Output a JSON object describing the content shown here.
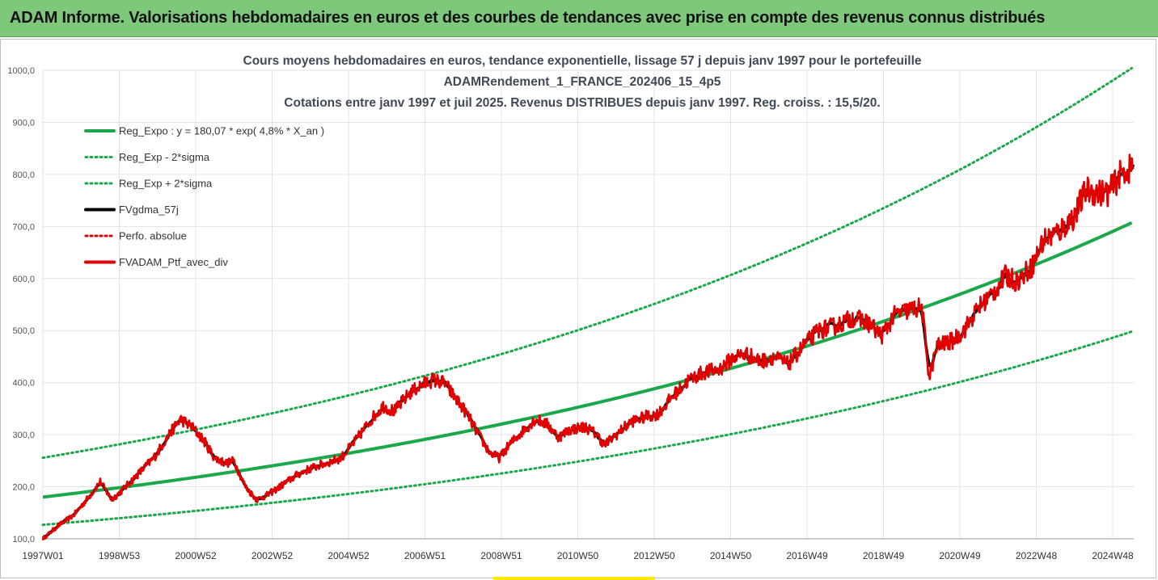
{
  "header": {
    "title": "ADAM Informe. Valorisations hebdomadaires en euros et des courbes de tendances avec prise en compte des revenus connus distribués"
  },
  "colors": {
    "banner": "#7dc87a",
    "reg_expo": "#1aa84a",
    "sigma": "#1aa84a",
    "fvgdma": "#000000",
    "perfo": "#e00000",
    "ptf": "#e00000",
    "grid": "#e3e3e3"
  },
  "chart_data": {
    "type": "line",
    "title_lines": [
      "Cours moyens hebdomadaires en euros, tendance exponentielle, lissage 57 j depuis janv 1997 pour le portefeuille",
      "ADAMRendement_1_FRANCE_202406_15_4p5",
      "Cotations entre janv 1997 et juil 2025. Revenus DISTRIBUES depuis janv 1997. Reg. croiss. : 15,5/20."
    ],
    "y_ticks": [
      "100,0",
      "200,0",
      "300,0",
      "400,0",
      "500,0",
      "600,0",
      "700,0",
      "800,0",
      "900,0",
      "1000,0"
    ],
    "ylim": [
      100,
      1000
    ],
    "x_range_years": [
      1997.0,
      2025.55
    ],
    "x_ticks": [
      {
        "label": "1997W01",
        "year": 1997.0
      },
      {
        "label": "1998W53",
        "year": 1999.0
      },
      {
        "label": "2000W52",
        "year": 2001.0
      },
      {
        "label": "2002W52",
        "year": 2003.0
      },
      {
        "label": "2004W52",
        "year": 2005.0
      },
      {
        "label": "2006W51",
        "year": 2007.0
      },
      {
        "label": "2008W51",
        "year": 2009.0
      },
      {
        "label": "2010W50",
        "year": 2011.0
      },
      {
        "label": "2012W50",
        "year": 2013.0
      },
      {
        "label": "2014W50",
        "year": 2015.0
      },
      {
        "label": "2016W49",
        "year": 2017.0
      },
      {
        "label": "2018W49",
        "year": 2019.0
      },
      {
        "label": "2020W49",
        "year": 2021.0
      },
      {
        "label": "2022W48",
        "year": 2023.0
      },
      {
        "label": "2024W48",
        "year": 2025.0
      }
    ],
    "regression": {
      "a": 180.07,
      "rate": 0.048,
      "sigma_factor": 1.42
    },
    "legend": [
      {
        "label": "Reg_Expo : y = 180,07 * exp( 4,8% *  X_an )",
        "style": "solid-green"
      },
      {
        "label": "Reg_Exp - 2*sigma",
        "style": "dotted-green"
      },
      {
        "label": "Reg_Exp + 2*sigma",
        "style": "dotted-green"
      },
      {
        "label": "FVgdma_57j",
        "style": "solid-black"
      },
      {
        "label": "Perfo. absolue",
        "style": "dotted-red"
      },
      {
        "label": "FVADAM_Ptf_avec_div",
        "style": "solid-red"
      }
    ],
    "series_points": [
      [
        1997.0,
        100
      ],
      [
        1997.4,
        125
      ],
      [
        1997.8,
        145
      ],
      [
        1998.2,
        180
      ],
      [
        1998.5,
        210
      ],
      [
        1998.8,
        175
      ],
      [
        1999.1,
        195
      ],
      [
        1999.5,
        225
      ],
      [
        1999.9,
        255
      ],
      [
        2000.3,
        300
      ],
      [
        2000.6,
        330
      ],
      [
        2000.9,
        315
      ],
      [
        2001.2,
        290
      ],
      [
        2001.5,
        255
      ],
      [
        2001.8,
        245
      ],
      [
        2002.0,
        250
      ],
      [
        2002.3,
        200
      ],
      [
        2002.6,
        175
      ],
      [
        2002.9,
        185
      ],
      [
        2003.3,
        205
      ],
      [
        2003.7,
        225
      ],
      [
        2004.0,
        235
      ],
      [
        2004.4,
        245
      ],
      [
        2004.8,
        255
      ],
      [
        2005.2,
        290
      ],
      [
        2005.6,
        330
      ],
      [
        2005.9,
        355
      ],
      [
        2006.2,
        345
      ],
      [
        2006.6,
        380
      ],
      [
        2006.9,
        395
      ],
      [
        2007.2,
        405
      ],
      [
        2007.5,
        400
      ],
      [
        2007.8,
        370
      ],
      [
        2008.1,
        340
      ],
      [
        2008.4,
        300
      ],
      [
        2008.7,
        265
      ],
      [
        2008.95,
        255
      ],
      [
        2009.2,
        280
      ],
      [
        2009.6,
        310
      ],
      [
        2009.9,
        330
      ],
      [
        2010.2,
        320
      ],
      [
        2010.5,
        295
      ],
      [
        2010.8,
        310
      ],
      [
        2011.2,
        315
      ],
      [
        2011.5,
        300
      ],
      [
        2011.7,
        280
      ],
      [
        2012.0,
        300
      ],
      [
        2012.4,
        325
      ],
      [
        2012.8,
        335
      ],
      [
        2013.1,
        340
      ],
      [
        2013.5,
        375
      ],
      [
        2013.9,
        405
      ],
      [
        2014.3,
        420
      ],
      [
        2014.7,
        425
      ],
      [
        2015.1,
        450
      ],
      [
        2015.4,
        455
      ],
      [
        2015.8,
        440
      ],
      [
        2016.1,
        450
      ],
      [
        2016.5,
        435
      ],
      [
        2016.9,
        470
      ],
      [
        2017.3,
        500
      ],
      [
        2017.8,
        510
      ],
      [
        2018.2,
        525
      ],
      [
        2018.6,
        515
      ],
      [
        2018.95,
        490
      ],
      [
        2019.3,
        530
      ],
      [
        2019.7,
        540
      ],
      [
        2020.0,
        545
      ],
      [
        2020.2,
        410
      ],
      [
        2020.4,
        470
      ],
      [
        2020.8,
        480
      ],
      [
        2021.1,
        500
      ],
      [
        2021.5,
        545
      ],
      [
        2021.9,
        575
      ],
      [
        2022.2,
        605
      ],
      [
        2022.5,
        595
      ],
      [
        2022.9,
        625
      ],
      [
        2023.2,
        675
      ],
      [
        2023.6,
        690
      ],
      [
        2024.0,
        720
      ],
      [
        2024.3,
        770
      ],
      [
        2024.6,
        765
      ],
      [
        2024.9,
        765
      ],
      [
        2025.2,
        800
      ],
      [
        2025.55,
        815
      ]
    ]
  }
}
